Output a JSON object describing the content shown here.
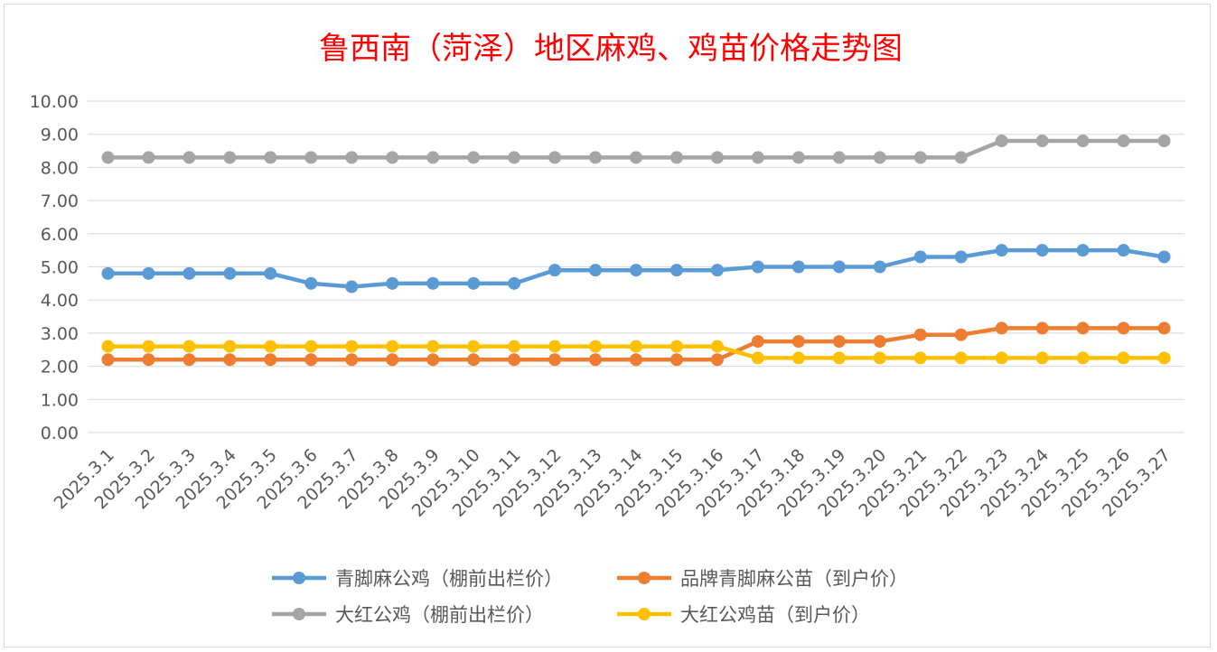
{
  "chart_data": {
    "type": "line",
    "title": "鲁西南（菏泽）地区麻鸡、鸡苗价格走势图",
    "xlabel": "",
    "ylabel": "",
    "ylim": [
      0,
      10
    ],
    "y_ticks": [
      "0.00",
      "1.00",
      "2.00",
      "3.00",
      "4.00",
      "5.00",
      "6.00",
      "7.00",
      "8.00",
      "9.00",
      "10.00"
    ],
    "grid": true,
    "legend_position": "bottom",
    "categories": [
      "2025.3.1",
      "2025.3.2",
      "2025.3.3",
      "2025.3.4",
      "2025.3.5",
      "2025.3.6",
      "2025.3.7",
      "2025.3.8",
      "2025.3.9",
      "2025.3.10",
      "2025.3.11",
      "2025.3.12",
      "2025.3.13",
      "2025.3.14",
      "2025.3.15",
      "2025.3.16",
      "2025.3.17",
      "2025.3.18",
      "2025.3.19",
      "2025.3.20",
      "2025.3.21",
      "2025.3.22",
      "2025.3.23",
      "2025.3.24",
      "2025.3.25",
      "2025.3.26",
      "2025.3.27"
    ],
    "series": [
      {
        "name": "青脚麻公鸡（棚前出栏价）",
        "color": "#5B9BD5",
        "values": [
          4.8,
          4.8,
          4.8,
          4.8,
          4.8,
          4.5,
          4.4,
          4.5,
          4.5,
          4.5,
          4.5,
          4.9,
          4.9,
          4.9,
          4.9,
          4.9,
          5.0,
          5.0,
          5.0,
          5.0,
          5.3,
          5.3,
          5.5,
          5.5,
          5.5,
          5.5,
          5.3
        ]
      },
      {
        "name": "品牌青脚麻公苗（到户价）",
        "color": "#ED7D31",
        "values": [
          2.2,
          2.2,
          2.2,
          2.2,
          2.2,
          2.2,
          2.2,
          2.2,
          2.2,
          2.2,
          2.2,
          2.2,
          2.2,
          2.2,
          2.2,
          2.2,
          2.75,
          2.75,
          2.75,
          2.75,
          2.95,
          2.95,
          3.15,
          3.15,
          3.15,
          3.15,
          3.15
        ]
      },
      {
        "name": "大红公鸡（棚前出栏价）",
        "color": "#A5A5A5",
        "values": [
          8.3,
          8.3,
          8.3,
          8.3,
          8.3,
          8.3,
          8.3,
          8.3,
          8.3,
          8.3,
          8.3,
          8.3,
          8.3,
          8.3,
          8.3,
          8.3,
          8.3,
          8.3,
          8.3,
          8.3,
          8.3,
          8.3,
          8.8,
          8.8,
          8.8,
          8.8,
          8.8
        ]
      },
      {
        "name": "大红公鸡苗（到户价）",
        "color": "#FFC000",
        "values": [
          2.6,
          2.6,
          2.6,
          2.6,
          2.6,
          2.6,
          2.6,
          2.6,
          2.6,
          2.6,
          2.6,
          2.6,
          2.6,
          2.6,
          2.6,
          2.6,
          2.25,
          2.25,
          2.25,
          2.25,
          2.25,
          2.25,
          2.25,
          2.25,
          2.25,
          2.25,
          2.25
        ]
      }
    ]
  },
  "colors": {
    "title": "#FF0000",
    "gridline": "#D9D9D9",
    "axis_text": "#595959",
    "frame_border": "#D9D9D9"
  }
}
